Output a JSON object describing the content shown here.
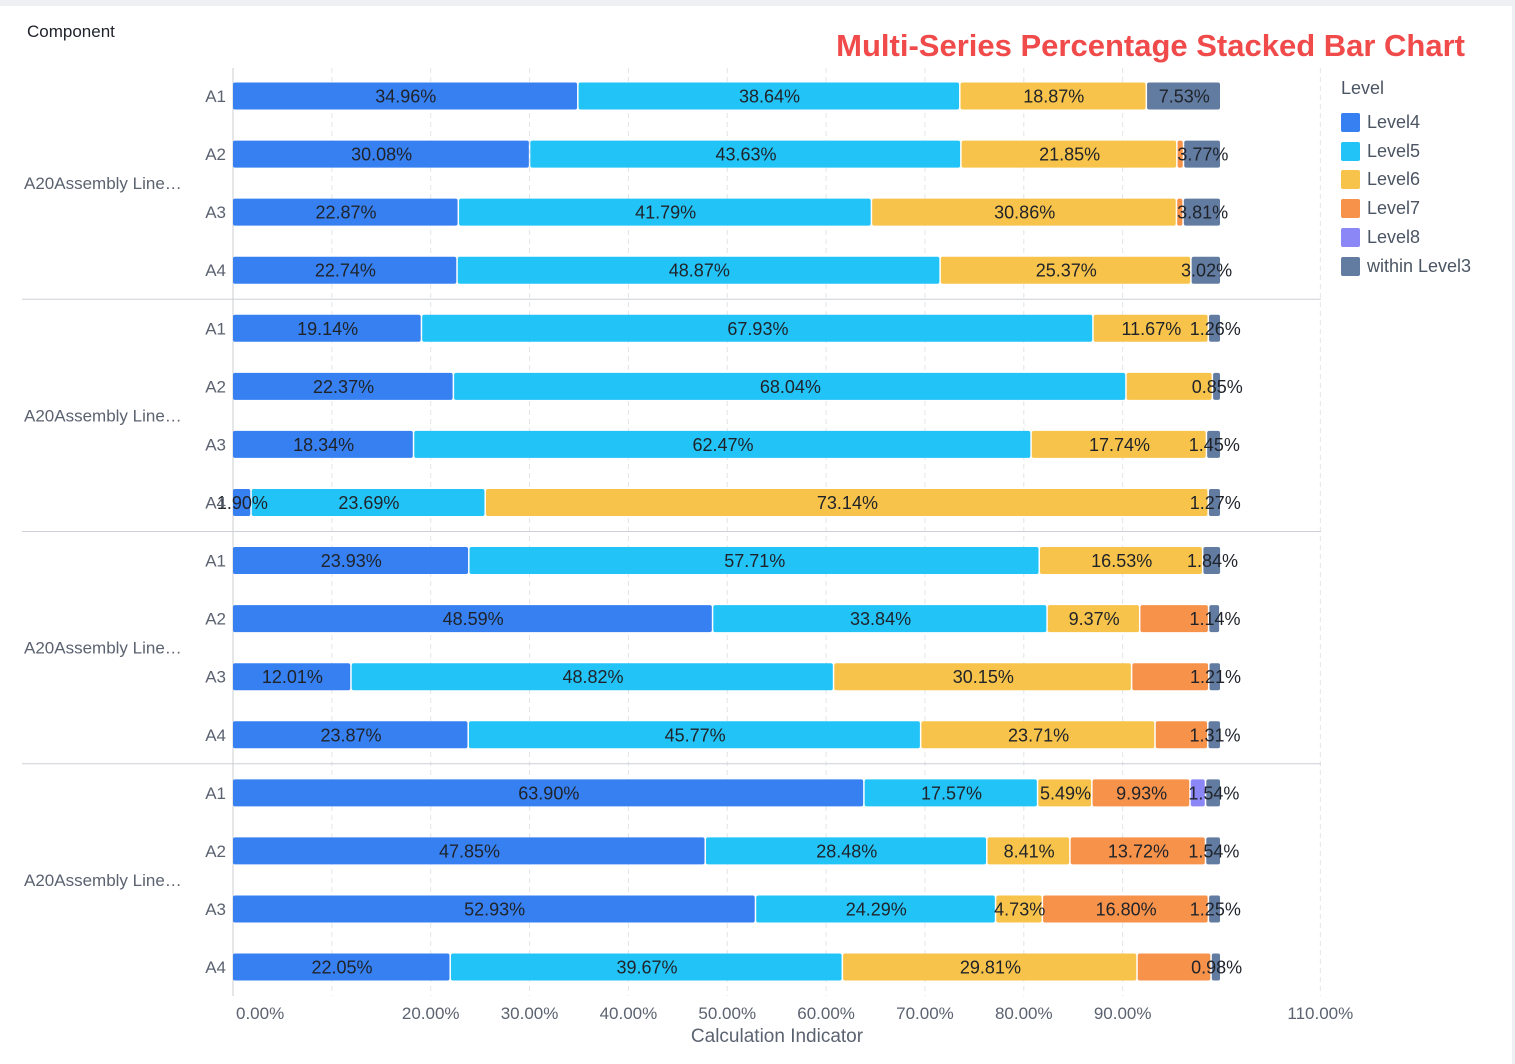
{
  "chart_data": {
    "type": "bar",
    "orientation": "horizontal",
    "stacked": true,
    "title": "Multi-Series Percentage Stacked Bar Chart",
    "ylabel": "Component",
    "xlabel": "Calculation Indicator",
    "x_ticks": [
      {
        "value": 0.0,
        "label": "0.00%"
      },
      {
        "value": 20.0,
        "label": "20.00%"
      },
      {
        "value": 30.0,
        "label": "30.00%"
      },
      {
        "value": 40.0,
        "label": "40.00%"
      },
      {
        "value": 50.0,
        "label": "50.00%"
      },
      {
        "value": 60.0,
        "label": "60.00%"
      },
      {
        "value": 70.0,
        "label": "70.00%"
      },
      {
        "value": 80.0,
        "label": "80.00%"
      },
      {
        "value": 90.0,
        "label": "90.00%"
      },
      {
        "value": 110.0,
        "label": "110.00%"
      }
    ],
    "grid_values": [
      10,
      20,
      30,
      40,
      50,
      60,
      70,
      80,
      90,
      110
    ],
    "xlim": [
      0,
      110
    ],
    "legend": {
      "title": "Level",
      "position": "right"
    },
    "series": [
      {
        "name": "Level4",
        "color": "#3680f2"
      },
      {
        "name": "Level5",
        "color": "#22c3f7"
      },
      {
        "name": "Level6",
        "color": "#f7c34a"
      },
      {
        "name": "Level7",
        "color": "#f7924a"
      },
      {
        "name": "Level8",
        "color": "#8c87f7"
      },
      {
        "name": "within Level3",
        "color": "#627ba1"
      }
    ],
    "groups": [
      {
        "label": "A20Assembly Line…",
        "rows": [
          {
            "label": "A1",
            "values": [
              34.96,
              38.64,
              18.87,
              0,
              0,
              7.53
            ]
          },
          {
            "label": "A2",
            "values": [
              30.08,
              43.63,
              21.85,
              0.67,
              0,
              3.77
            ]
          },
          {
            "label": "A3",
            "values": [
              22.87,
              41.79,
              30.86,
              0.67,
              0,
              3.81
            ]
          },
          {
            "label": "A4",
            "values": [
              22.74,
              48.87,
              25.37,
              0,
              0,
              3.02
            ]
          }
        ]
      },
      {
        "label": "A20Assembly Line…",
        "rows": [
          {
            "label": "A1",
            "values": [
              19.14,
              67.93,
              11.67,
              0,
              0,
              1.26
            ]
          },
          {
            "label": "A2",
            "values": [
              22.37,
              68.04,
              8.74,
              0,
              0,
              0.85
            ]
          },
          {
            "label": "A3",
            "values": [
              18.34,
              62.47,
              17.74,
              0,
              0,
              1.45
            ]
          },
          {
            "label": "A4",
            "values": [
              1.9,
              23.69,
              73.14,
              0,
              0,
              1.27
            ]
          }
        ]
      },
      {
        "label": "A20Assembly Line…",
        "rows": [
          {
            "label": "A1",
            "values": [
              23.93,
              57.71,
              16.53,
              0,
              0,
              1.84
            ]
          },
          {
            "label": "A2",
            "values": [
              48.59,
              33.84,
              9.37,
              6.97,
              0,
              1.14
            ]
          },
          {
            "label": "A3",
            "values": [
              12.01,
              48.82,
              30.15,
              7.81,
              0,
              1.21
            ]
          },
          {
            "label": "A4",
            "values": [
              23.87,
              45.77,
              23.71,
              5.34,
              0,
              1.31
            ]
          }
        ]
      },
      {
        "label": "A20Assembly Line…",
        "rows": [
          {
            "label": "A1",
            "values": [
              63.9,
              17.57,
              5.49,
              9.93,
              1.57,
              1.54
            ]
          },
          {
            "label": "A2",
            "values": [
              47.85,
              28.48,
              8.41,
              13.72,
              0,
              1.54
            ]
          },
          {
            "label": "A3",
            "values": [
              52.93,
              24.29,
              4.73,
              16.8,
              0,
              1.25
            ]
          },
          {
            "label": "A4",
            "values": [
              22.05,
              39.67,
              29.81,
              7.49,
              0,
              0.98
            ]
          }
        ]
      }
    ]
  }
}
